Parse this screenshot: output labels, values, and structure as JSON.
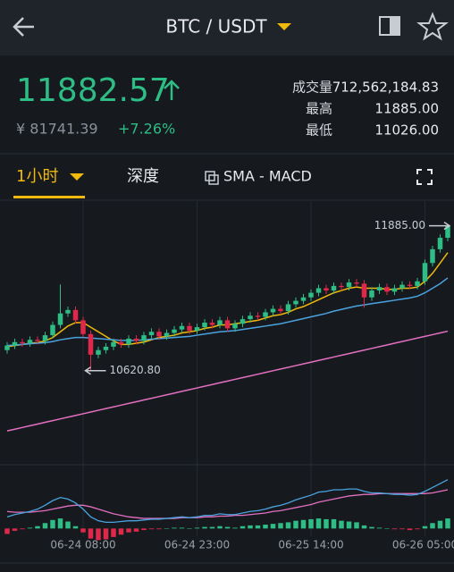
{
  "header": {
    "title": "BTC / USDT"
  },
  "ticker": {
    "price": "11882.57",
    "cny": "¥ 81741.39",
    "change": "+7.26%",
    "stats": [
      {
        "label": "成交量",
        "value": "712,562,184.83"
      },
      {
        "label": "最高",
        "value": "11885.00"
      },
      {
        "label": "最低",
        "value": "11026.00"
      }
    ]
  },
  "tabs": [
    "1小时",
    "深度",
    "SMA - MACD"
  ],
  "chart_data": {
    "type": "candlestick",
    "up_color": "#2ebd85",
    "down_color": "#e0294a",
    "ylim": [
      9800,
      12100
    ],
    "xticks": [
      {
        "value": 10,
        "label": "06-24 08:00"
      },
      {
        "value": 25,
        "label": "06-24 23:00"
      },
      {
        "value": 40,
        "label": "06-25 14:00"
      },
      {
        "value": 55,
        "label": "06-26 05:00"
      }
    ],
    "open": [
      10800,
      10840,
      10870,
      10860,
      10890,
      10880,
      10930,
      11020,
      11120,
      11150,
      11060,
      10940,
      10760,
      10800,
      10830,
      10870,
      10850,
      10900,
      10880,
      10930,
      10960,
      10920,
      10950,
      10980,
      11010,
      10970,
      11000,
      11040,
      11020,
      11060,
      10990,
      11030,
      11070,
      11100,
      11090,
      11130,
      11160,
      11140,
      11200,
      11230,
      11260,
      11300,
      11340,
      11320,
      11360,
      11350,
      11390,
      11380,
      11260,
      11320,
      11350,
      11310,
      11340,
      11370,
      11360,
      11400,
      11560,
      11680,
      11780
    ],
    "high": [
      10870,
      10900,
      10900,
      10920,
      10920,
      10960,
      11050,
      11373,
      11180,
      11180,
      11090,
      10970,
      10830,
      10860,
      10900,
      10900,
      10930,
      10930,
      10960,
      10990,
      10990,
      10980,
      11010,
      11040,
      11040,
      11030,
      11070,
      11070,
      11090,
      11090,
      11060,
      11100,
      11130,
      11130,
      11160,
      11190,
      11190,
      11230,
      11260,
      11290,
      11330,
      11370,
      11370,
      11390,
      11390,
      11420,
      11420,
      11410,
      11350,
      11380,
      11380,
      11370,
      11400,
      11400,
      11430,
      11590,
      11710,
      11810,
      11885
    ],
    "low": [
      10770,
      10810,
      10830,
      10830,
      10850,
      10850,
      10900,
      10990,
      11090,
      11030,
      10910,
      10620.8,
      10730,
      10770,
      10800,
      10820,
      10820,
      10850,
      10850,
      10900,
      10890,
      10890,
      10920,
      10950,
      10940,
      10940,
      10970,
      10990,
      10990,
      10960,
      10960,
      11000,
      11040,
      11060,
      11060,
      11100,
      11110,
      11110,
      11170,
      11200,
      11230,
      11270,
      11290,
      11290,
      11320,
      11320,
      11350,
      11170,
      11230,
      11290,
      11280,
      11280,
      11310,
      11330,
      11330,
      11370,
      11530,
      11650,
      11750
    ],
    "close": [
      10840,
      10870,
      10860,
      10890,
      10880,
      10930,
      11020,
      11120,
      11150,
      11060,
      10940,
      10760,
      10800,
      10830,
      10870,
      10850,
      10900,
      10880,
      10930,
      10960,
      10920,
      10950,
      10980,
      11010,
      10970,
      11000,
      11040,
      11020,
      11060,
      10990,
      11030,
      11070,
      11100,
      11090,
      11130,
      11160,
      11140,
      11200,
      11230,
      11260,
      11300,
      11340,
      11320,
      11360,
      11350,
      11390,
      11380,
      11260,
      11320,
      11350,
      11310,
      11340,
      11370,
      11360,
      11400,
      11560,
      11680,
      11780,
      11882.57
    ],
    "ma": [
      {
        "color": "#f0b90b",
        "values": [
          10830,
          10840,
          10850,
          10860,
          10865,
          10880,
          10910,
          10960,
          11010,
          11040,
          11040,
          11000,
          10960,
          10920,
          10880,
          10850,
          10850,
          10860,
          10870,
          10890,
          10910,
          10920,
          10930,
          10950,
          10960,
          10970,
          10990,
          11000,
          11020,
          11020,
          11030,
          11040,
          11050,
          11060,
          11080,
          11100,
          11110,
          11130,
          11160,
          11180,
          11210,
          11240,
          11270,
          11300,
          11320,
          11340,
          11350,
          11340,
          11340,
          11340,
          11330,
          11330,
          11340,
          11340,
          11350,
          11400,
          11470,
          11560,
          11650
        ]
      },
      {
        "color": "#4aa3df",
        "values": [
          10840,
          10845,
          10850,
          10855,
          10860,
          10865,
          10875,
          10890,
          10900,
          10910,
          10910,
          10905,
          10900,
          10895,
          10890,
          10885,
          10885,
          10885,
          10890,
          10895,
          10900,
          10905,
          10910,
          10915,
          10920,
          10930,
          10940,
          10950,
          10960,
          10965,
          10970,
          10980,
          10990,
          11000,
          11010,
          11020,
          11030,
          11045,
          11060,
          11075,
          11090,
          11105,
          11120,
          11140,
          11155,
          11170,
          11185,
          11195,
          11205,
          11215,
          11225,
          11235,
          11245,
          11255,
          11270,
          11300,
          11340,
          11380,
          11430
        ]
      },
      {
        "color": "#e36fc0",
        "values": [
          10095,
          10110,
          10125,
          10140,
          10155,
          10170,
          10185,
          10200,
          10215,
          10230,
          10245,
          10260,
          10275,
          10290,
          10305,
          10320,
          10335,
          10350,
          10365,
          10380,
          10395,
          10410,
          10425,
          10440,
          10455,
          10470,
          10485,
          10500,
          10515,
          10530,
          10545,
          10560,
          10575,
          10590,
          10605,
          10620,
          10635,
          10650,
          10665,
          10680,
          10695,
          10710,
          10725,
          10740,
          10755,
          10770,
          10785,
          10800,
          10815,
          10830,
          10845,
          10860,
          10875,
          10890,
          10905,
          10920,
          10935,
          10950,
          10965
        ]
      }
    ],
    "annotations": [
      {
        "label": "11885.00",
        "value": 11885
      },
      {
        "label": "10620.80",
        "value": 10620.8
      }
    ],
    "macd": {
      "ylim": [
        -10,
        80
      ],
      "dif": {
        "color": "#4aa3df",
        "values": [
          15,
          18,
          20,
          22,
          25,
          30,
          36,
          40,
          38,
          33,
          25,
          15,
          10,
          8,
          8,
          9,
          10,
          10,
          11,
          12,
          12,
          13,
          14,
          15,
          14,
          15,
          17,
          17,
          19,
          18,
          18,
          20,
          22,
          23,
          25,
          28,
          30,
          33,
          37,
          40,
          43,
          47,
          48,
          50,
          50,
          51,
          51,
          48,
          46,
          46,
          45,
          44,
          44,
          43,
          44,
          48,
          53,
          58,
          63
        ]
      },
      "dea": {
        "color": "#e36fc0",
        "values": [
          22,
          21,
          21,
          21,
          22,
          23,
          25,
          27,
          29,
          30,
          30,
          28,
          25,
          22,
          19,
          17,
          15,
          14,
          13,
          13,
          13,
          13,
          13,
          14,
          14,
          14,
          15,
          15,
          16,
          16,
          17,
          17,
          18,
          19,
          20,
          22,
          23,
          25,
          27,
          29,
          31,
          34,
          36,
          38,
          40,
          42,
          43,
          44,
          44,
          45,
          45,
          45,
          45,
          45,
          45,
          45,
          46,
          48,
          50
        ]
      },
      "hist": [
        -7,
        -3,
        -1,
        1,
        3,
        7,
        11,
        13,
        9,
        3,
        -5,
        -13,
        -15,
        -14,
        -11,
        -8,
        -5,
        -4,
        -2,
        -1,
        -1,
        0,
        1,
        1,
        0,
        1,
        2,
        2,
        3,
        2,
        1,
        3,
        4,
        4,
        5,
        6,
        7,
        8,
        10,
        11,
        12,
        13,
        12,
        12,
        10,
        9,
        8,
        4,
        2,
        1,
        0,
        -1,
        -1,
        -2,
        -1,
        3,
        7,
        10,
        13
      ]
    }
  }
}
